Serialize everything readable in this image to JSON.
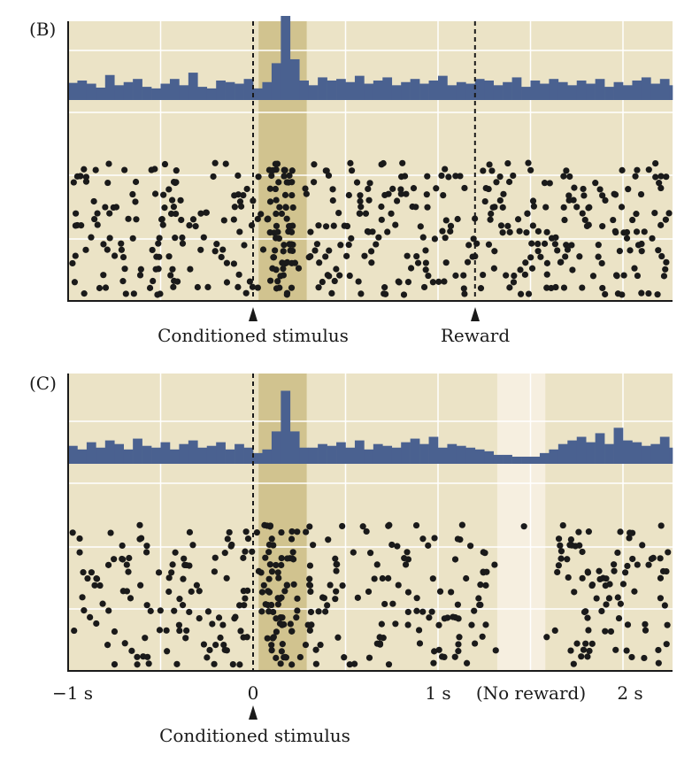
{
  "colors": {
    "background": "#ebe3c6",
    "stimulus_window": "#d1c38f",
    "no_reward_window": "#f6efe0",
    "histogram": "#4a6190",
    "spike": "#1a1a1a",
    "grid": "#ffffff"
  },
  "chart_data": [
    {
      "type": "histogram+raster",
      "panel_label": "(B)",
      "xlim": [
        -1,
        2.27
      ],
      "bin_width_s": 0.05,
      "hist_ylim": [
        0,
        100
      ],
      "stimulus_window": [
        0.03,
        0.29
      ],
      "markers": [
        {
          "label": "Conditioned stimulus",
          "t": 0
        },
        {
          "label": "Reward",
          "t": 1.2
        }
      ],
      "histogram": [
        15,
        18,
        14,
        9,
        25,
        12,
        16,
        20,
        10,
        8,
        14,
        20,
        12,
        28,
        10,
        8,
        18,
        16,
        14,
        20,
        8,
        16,
        40,
        100,
        45,
        18,
        12,
        22,
        18,
        20,
        16,
        24,
        14,
        18,
        22,
        12,
        16,
        20,
        14,
        18,
        24,
        12,
        16,
        14,
        20,
        18,
        12,
        16,
        22,
        10,
        18,
        14,
        20,
        16,
        12,
        18,
        14,
        20,
        10,
        16,
        12,
        18,
        22,
        14,
        20,
        12
      ],
      "raster": {
        "trials": 22,
        "baseline_spikes_per_trial": 19,
        "burst_window": [
          0.08,
          0.22
        ],
        "burst_spikes_per_trial": 2.2,
        "seed": 7
      }
    },
    {
      "type": "histogram+raster",
      "panel_label": "(C)",
      "xlim": [
        -1,
        2.27
      ],
      "bin_width_s": 0.05,
      "hist_ylim": [
        0,
        100
      ],
      "stimulus_window": [
        0.03,
        0.29
      ],
      "no_reward_window": [
        1.32,
        1.58
      ],
      "markers": [
        {
          "label": "Conditioned stimulus",
          "t": 0
        }
      ],
      "x_ticks": [
        {
          "t": -1,
          "label": "−1 s"
        },
        {
          "t": 0,
          "label": "0"
        },
        {
          "t": 1,
          "label": "1 s"
        },
        {
          "t": 1.5,
          "label": "(No reward)"
        },
        {
          "t": 2,
          "label": "2 s"
        }
      ],
      "histogram": [
        14,
        10,
        18,
        12,
        20,
        16,
        10,
        22,
        14,
        12,
        18,
        10,
        16,
        20,
        12,
        14,
        18,
        10,
        16,
        12,
        6,
        10,
        30,
        75,
        30,
        12,
        12,
        16,
        14,
        18,
        12,
        20,
        10,
        16,
        14,
        12,
        18,
        22,
        16,
        24,
        12,
        16,
        14,
        12,
        10,
        8,
        4,
        4,
        2,
        2,
        2,
        6,
        10,
        16,
        20,
        24,
        18,
        28,
        16,
        34,
        20,
        18,
        14,
        16,
        24,
        12
      ],
      "raster": {
        "trials": 22,
        "baseline_spikes_per_trial": 18,
        "burst_window": [
          0.08,
          0.22
        ],
        "burst_spikes_per_trial": 2.0,
        "suppression_window": [
          1.32,
          1.58
        ],
        "seed": 19
      }
    }
  ]
}
